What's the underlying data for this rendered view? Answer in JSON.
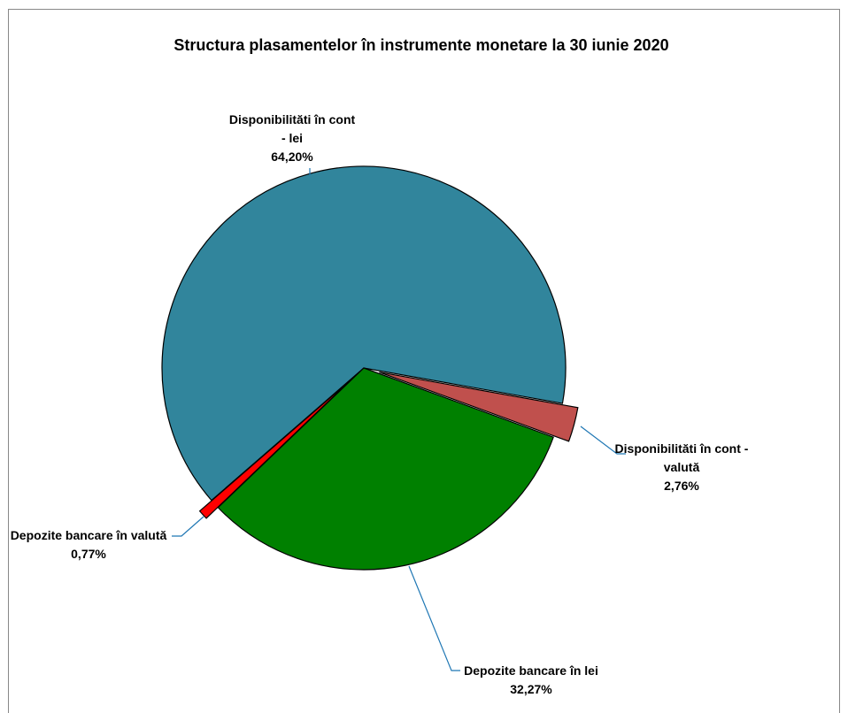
{
  "chart_data": {
    "type": "pie",
    "title": "Structura plasamentelor în instrumente monetare  la 30 iunie 2020",
    "categories": [
      "Disponibilităti în cont - lei",
      "Disponibilităti în cont - valută",
      "Depozite bancare în lei",
      "Depozite bancare în valută"
    ],
    "values": [
      64.2,
      2.76,
      32.27,
      0.77
    ],
    "value_labels": [
      "64,20%",
      "2,76%",
      "32,27%",
      "0,77%"
    ],
    "colors": [
      "#31859c",
      "#c0504d",
      "#008000",
      "#ff0000"
    ],
    "exploded": [
      false,
      true,
      false,
      true
    ]
  }
}
